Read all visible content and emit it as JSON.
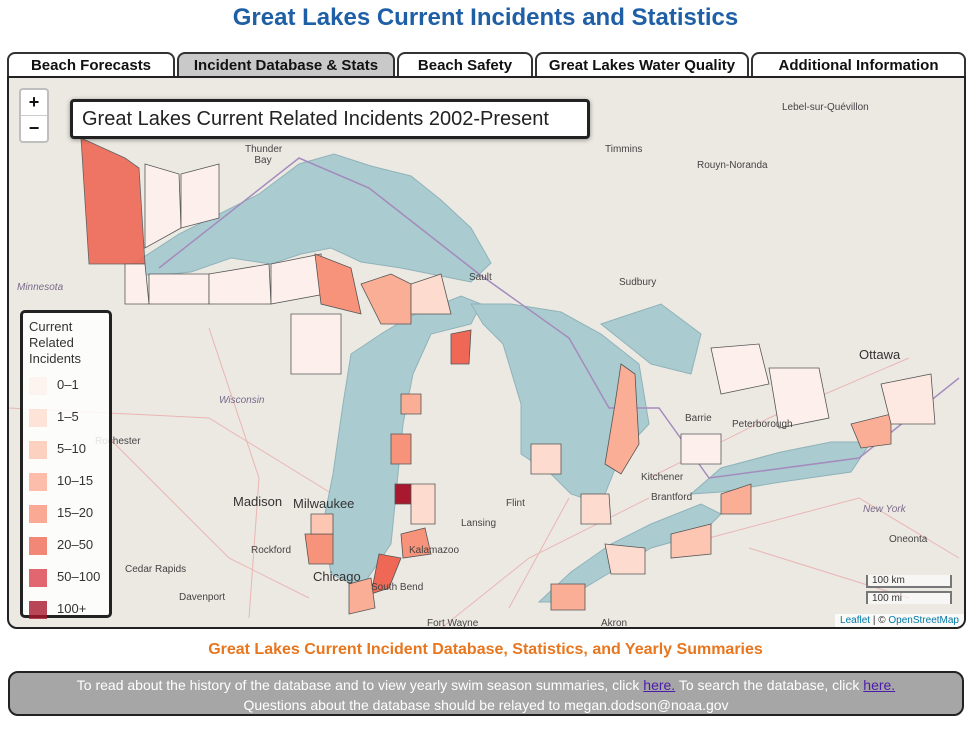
{
  "header": {
    "title": "Great Lakes Current Incidents and Statistics"
  },
  "tabs": [
    "Beach Forecasts",
    "Incident Database & Stats",
    "Beach Safety",
    "Great Lakes Water Quality",
    "Additional Information"
  ],
  "map": {
    "title": "Great Lakes Current Related Incidents 2002-Present",
    "zoom_in": "+",
    "zoom_out": "−",
    "places": [
      "Lebel-sur-Quévillon",
      "Thunder Bay",
      "Timmins",
      "Rouyn-Noranda",
      "Minnesota",
      "Sault",
      "Sudbury",
      "Ottawa",
      "Wisconsin",
      "Peterborough",
      "Barrie",
      "Kitchener",
      "Madison",
      "Milwaukee",
      "Rochester",
      "Flint",
      "Brantford",
      "Lansing",
      "New York",
      "Rockford",
      "Kalamazoo",
      "Chicago",
      "Cedar Rapids",
      "Davenport",
      "South Bend",
      "Oneonta",
      "Fort Wayne",
      "Akron"
    ],
    "legend": {
      "title": "Current Related Incidents",
      "items": [
        {
          "label": "0–1",
          "color": "#fdf0ec"
        },
        {
          "label": "1–5",
          "color": "#fddccf"
        },
        {
          "label": "5–10",
          "color": "#fcc6b2"
        },
        {
          "label": "10–15",
          "color": "#fbae96"
        },
        {
          "label": "15–20",
          "color": "#f7937a"
        },
        {
          "label": "20–50",
          "color": "#ef6856"
        },
        {
          "label": "50–100",
          "color": "#d9404e"
        },
        {
          "label": "100+",
          "color": "#a8182e"
        }
      ]
    },
    "scale": [
      "100 km",
      "100 mi"
    ],
    "attribution": [
      "Leaflet",
      "| ©",
      "OpenStreetMap"
    ]
  },
  "subtitle": "Great Lakes Current Incident Database, Statistics, and Yearly Summaries",
  "footer": {
    "line1_a": "To read about the history of the database and to view yearly swim season summaries, click",
    "link1": "here.",
    "line1_b": "To search the database, click",
    "link2": "here.",
    "line2": "Questions about the database should be relayed to megan.dodson@noaa.gov"
  }
}
